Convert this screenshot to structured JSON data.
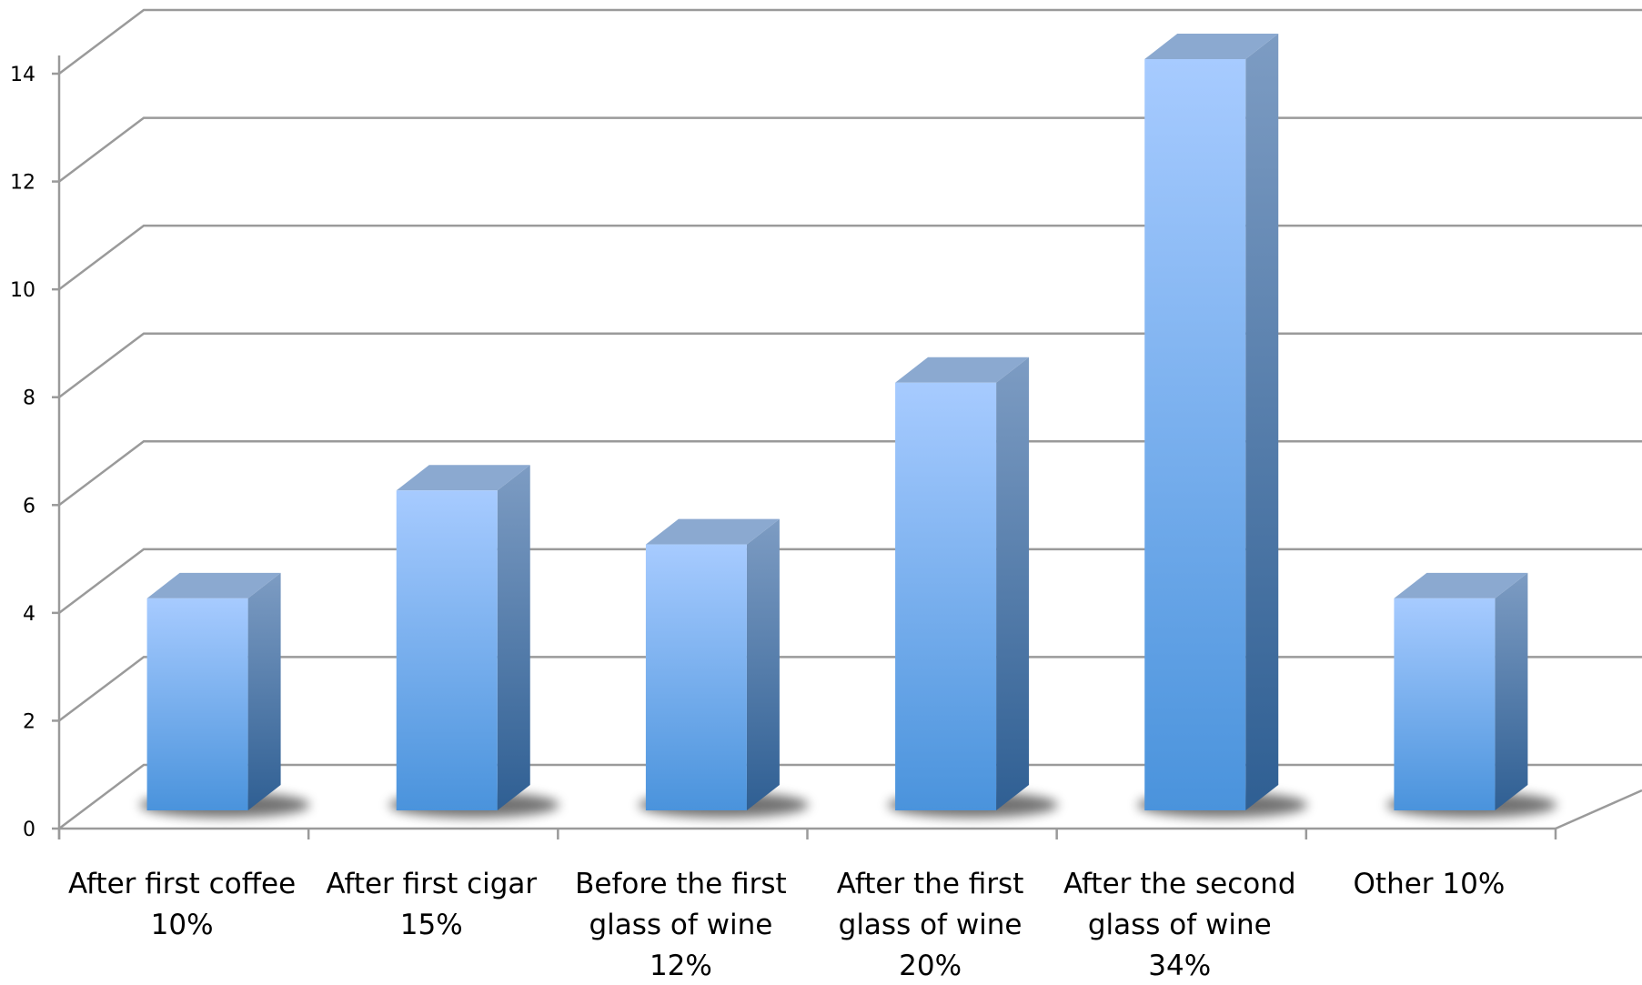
{
  "chart_data": {
    "type": "bar",
    "style": "3d-column",
    "title": "",
    "xlabel": "",
    "ylabel": "",
    "ylim": [
      0,
      14
    ],
    "yticks": [
      0,
      2,
      4,
      6,
      8,
      10,
      12,
      14
    ],
    "grid": true,
    "legend": "none",
    "categories": [
      [
        "After first coffee",
        "10%"
      ],
      [
        "After first cigar",
        "15%"
      ],
      [
        "Before the first",
        "glass of wine",
        "12%"
      ],
      [
        "After the first",
        "glass of wine",
        "20%"
      ],
      [
        "After the second",
        "glass of wine",
        "34%"
      ],
      [
        "Other 10%"
      ]
    ],
    "values": [
      4,
      6,
      5,
      8,
      14,
      4
    ],
    "colors": {
      "bar_front_top": "#a7cbff",
      "bar_front_bottom": "#4a93dc",
      "bar_side_top": "#7d9cc3",
      "bar_side_bottom": "#2f5f93",
      "bar_top": "#8ba9d0",
      "grid": "#9a9a9a",
      "shadow": "#000000"
    }
  }
}
